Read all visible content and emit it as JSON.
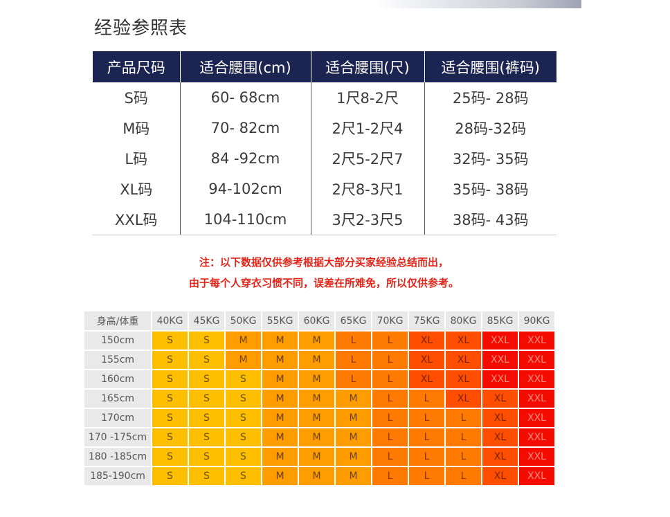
{
  "title": "经验参照表",
  "size_table": {
    "headers": [
      "产品尺码",
      "适合腰围(cm)",
      "适合腰围(尺)",
      "适合腰围(裤码)"
    ],
    "rows": [
      [
        "S码",
        "60- 68cm",
        "1尺8-2尺",
        "25码- 28码"
      ],
      [
        "M码",
        "70- 82cm",
        "2尺1-2尺4",
        "28码-32码"
      ],
      [
        "L码",
        "84 -92cm",
        "2尺5-2尺7",
        "32码- 35码"
      ],
      [
        "XL码",
        "94-102cm",
        "2尺8-3尺1",
        "35码- 38码"
      ],
      [
        "XXL码",
        "104-110cm",
        "3尺2-3尺5",
        "38码- 43码"
      ]
    ]
  },
  "note": {
    "line1": "注：以下数据仅供参考根据大部分买家经验总结而出，",
    "line2": "由于每个人穿衣习惯不同，误差在所难免，所以仅供参考。"
  },
  "size_chart": {
    "corner": "身高/体重",
    "weights": [
      "40KG",
      "45KG",
      "50KG",
      "55KG",
      "60KG",
      "65KG",
      "70KG",
      "75KG",
      "80KG",
      "85KG",
      "90KG"
    ],
    "rows": [
      {
        "height": "150cm",
        "sizes": [
          "S",
          "S",
          "M",
          "M",
          "M",
          "L",
          "L",
          "XL",
          "XL",
          "XXL",
          "XXL"
        ]
      },
      {
        "height": "155cm",
        "sizes": [
          "S",
          "S",
          "M",
          "M",
          "M",
          "L",
          "L",
          "XL",
          "XL",
          "XXL",
          "XXL"
        ]
      },
      {
        "height": "160cm",
        "sizes": [
          "S",
          "S",
          "S",
          "M",
          "M",
          "L",
          "L",
          "XL",
          "XL",
          "XXL",
          "XXL"
        ]
      },
      {
        "height": "165cm",
        "sizes": [
          "S",
          "S",
          "S",
          "M",
          "M",
          "M",
          "L",
          "L",
          "XL",
          "XL",
          "XXL"
        ]
      },
      {
        "height": "170cm",
        "sizes": [
          "S",
          "S",
          "S",
          "M",
          "M",
          "M",
          "L",
          "L",
          "L",
          "XL",
          "XXL"
        ]
      },
      {
        "height": "170 -175cm",
        "sizes": [
          "S",
          "S",
          "S",
          "M",
          "M",
          "M",
          "L",
          "L",
          "L",
          "XL",
          "XXL"
        ]
      },
      {
        "height": "180 -185cm",
        "sizes": [
          "S",
          "S",
          "S",
          "M",
          "M",
          "M",
          "L",
          "L",
          "L",
          "XL",
          "XXL"
        ]
      },
      {
        "height": "185-190cm",
        "sizes": [
          "S",
          "S",
          "S",
          "M",
          "M",
          "M",
          "L",
          "L",
          "L",
          "XL",
          "XXL"
        ]
      }
    ],
    "colors": {
      "S": "#ffbe00",
      "M": "#ff9d00",
      "L": "#ff7a00",
      "XL": "#ff4e00",
      "XXL": "#f50c00"
    }
  },
  "theme": {
    "header_navy": "#1c2551",
    "note_red": "#e0261b"
  }
}
